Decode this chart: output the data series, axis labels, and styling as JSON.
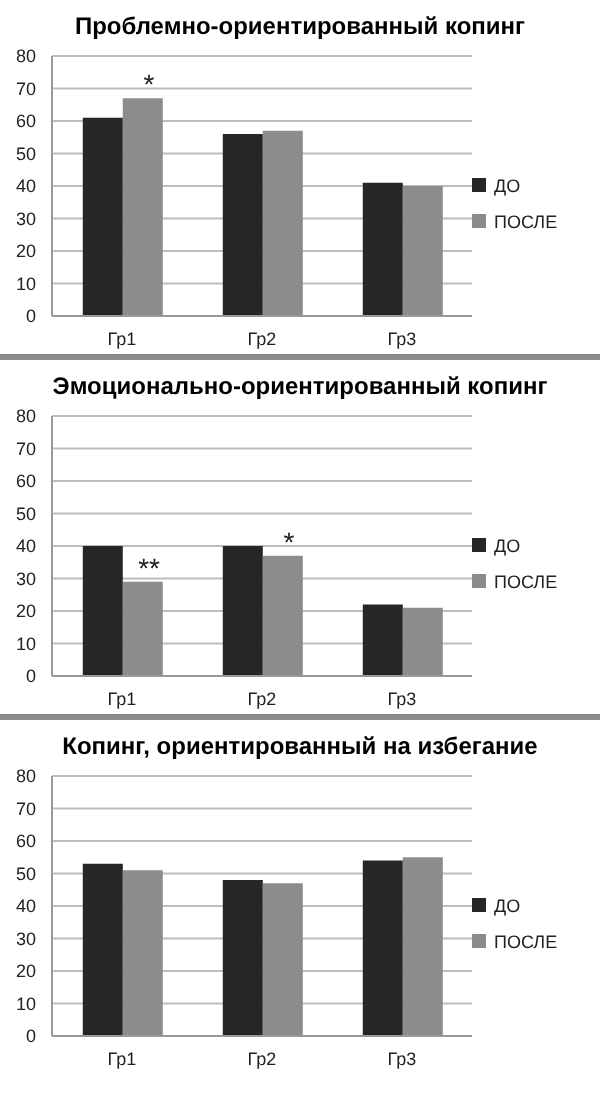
{
  "chart_data": [
    {
      "type": "bar",
      "title": "Проблемно-ориентированный копинг",
      "categories": [
        "Гр1",
        "Гр2",
        "Гр3"
      ],
      "series": [
        {
          "name": "ДО",
          "color": "#262626",
          "values": [
            61,
            56,
            41
          ]
        },
        {
          "name": "ПОСЛЕ",
          "color": "#8c8c8c",
          "values": [
            67,
            57,
            40
          ]
        }
      ],
      "ylim": [
        0,
        80
      ],
      "yticks": [
        0,
        10,
        20,
        30,
        40,
        50,
        60,
        70,
        80
      ],
      "grid": "y",
      "legend": "right",
      "annotations": [
        {
          "text": "*",
          "x": "Гр1",
          "y": 67
        }
      ]
    },
    {
      "type": "bar",
      "title": "Эмоционально-ориентированный копинг",
      "categories": [
        "Гр1",
        "Гр2",
        "Гр3"
      ],
      "series": [
        {
          "name": "ДО",
          "color": "#262626",
          "values": [
            40,
            40,
            22
          ]
        },
        {
          "name": "ПОСЛЕ",
          "color": "#8c8c8c",
          "values": [
            29,
            37,
            21
          ]
        }
      ],
      "ylim": [
        0,
        80
      ],
      "yticks": [
        0,
        10,
        20,
        30,
        40,
        50,
        60,
        70,
        80
      ],
      "grid": "y",
      "legend": "right",
      "annotations": [
        {
          "text": "**",
          "x": "Гр1",
          "y": 29
        },
        {
          "text": "*",
          "x": "Гр2",
          "y": 37
        }
      ]
    },
    {
      "type": "bar",
      "title": "Копинг, ориентированный на избегание",
      "categories": [
        "Гр1",
        "Гр2",
        "Гр3"
      ],
      "series": [
        {
          "name": "ДО",
          "color": "#262626",
          "values": [
            53,
            48,
            54
          ]
        },
        {
          "name": "ПОСЛЕ",
          "color": "#8c8c8c",
          "values": [
            51,
            47,
            55
          ]
        }
      ],
      "ylim": [
        0,
        80
      ],
      "yticks": [
        0,
        10,
        20,
        30,
        40,
        50,
        60,
        70,
        80
      ],
      "grid": "y",
      "legend": "right"
    }
  ]
}
